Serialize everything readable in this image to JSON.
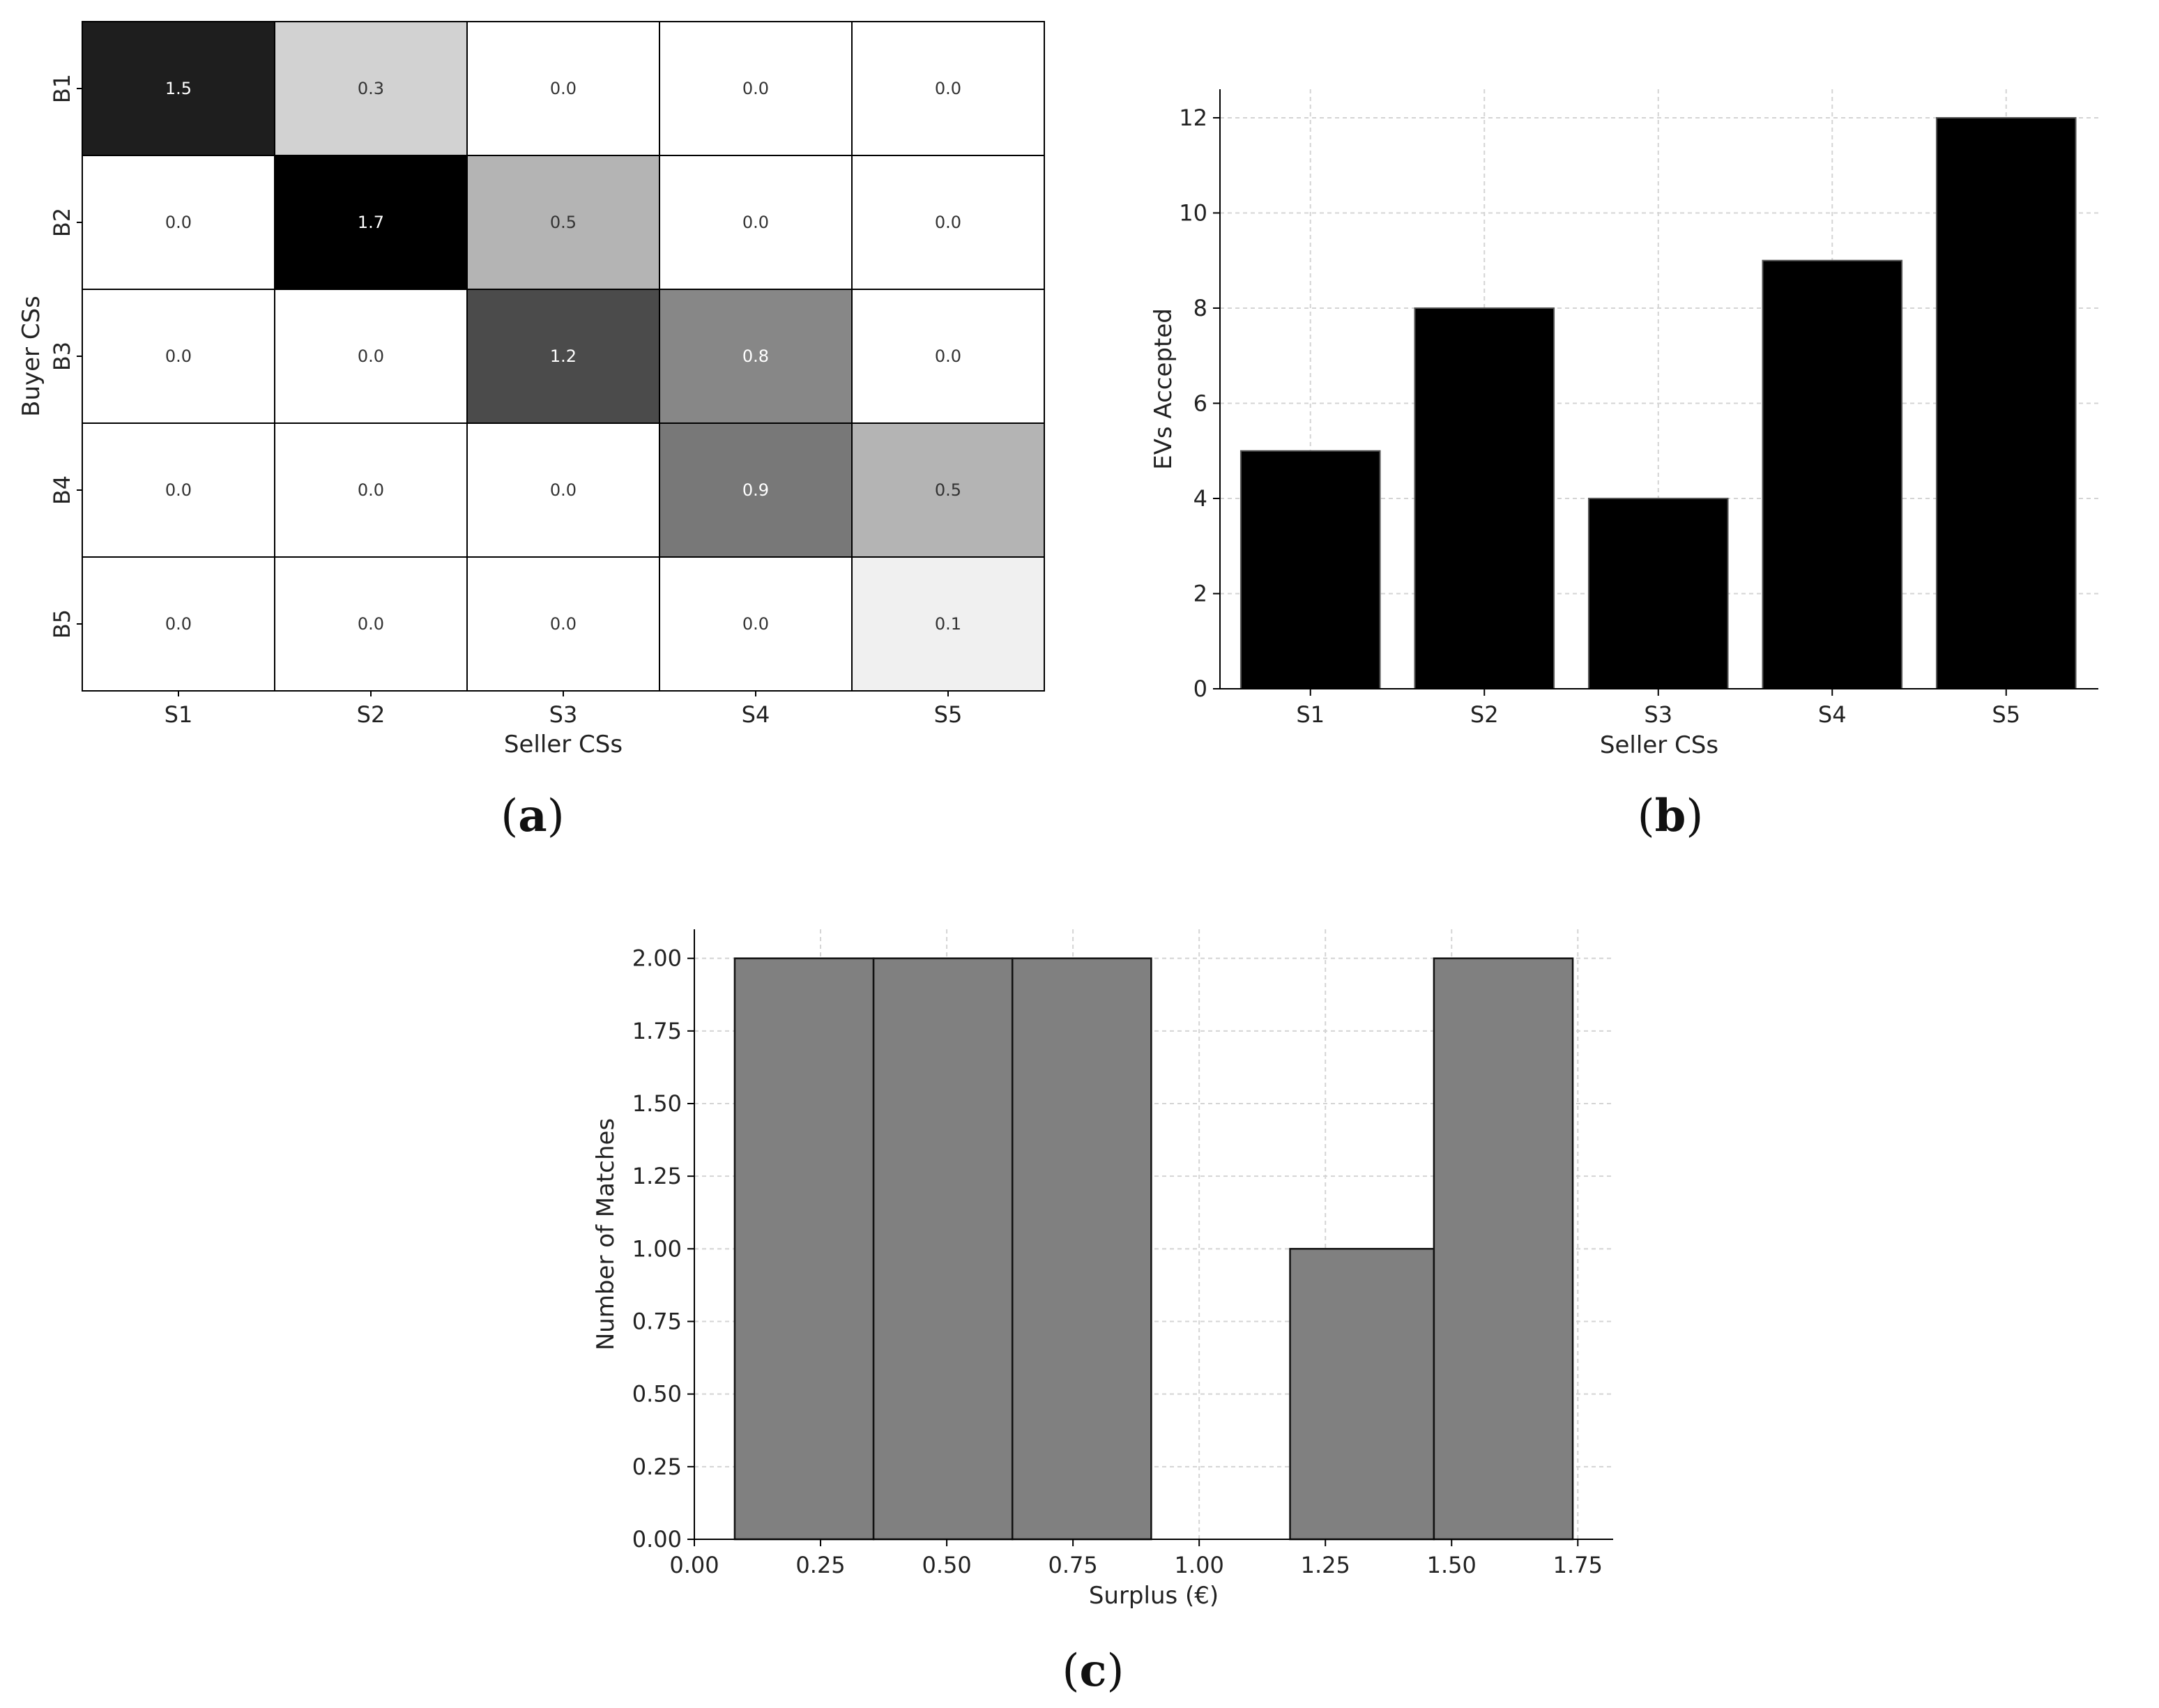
{
  "captions": {
    "a": "a",
    "b": "b",
    "c": "c"
  },
  "chart_data": [
    {
      "panel": "a",
      "type": "heatmap",
      "xlabel": "Seller CSs",
      "ylabel": "Buyer CSs",
      "x_categories": [
        "S1",
        "S2",
        "S3",
        "S4",
        "S5"
      ],
      "y_categories": [
        "B1",
        "B2",
        "B3",
        "B4",
        "B5"
      ],
      "values": [
        [
          1.5,
          0.3,
          0.0,
          0.0,
          0.0
        ],
        [
          0.0,
          1.7,
          0.5,
          0.0,
          0.0
        ],
        [
          0.0,
          0.0,
          1.2,
          0.8,
          0.0
        ],
        [
          0.0,
          0.0,
          0.0,
          0.9,
          0.5
        ],
        [
          0.0,
          0.0,
          0.0,
          0.0,
          0.1
        ]
      ],
      "value_labels": [
        [
          "1.5",
          "0.3",
          "0.0",
          "0.0",
          "0.0"
        ],
        [
          "0.0",
          "1.7",
          "0.5",
          "0.0",
          "0.0"
        ],
        [
          "0.0",
          "0.0",
          "1.2",
          "0.8",
          "0.0"
        ],
        [
          "0.0",
          "0.0",
          "0.0",
          "0.9",
          "0.5"
        ],
        [
          "0.0",
          "0.0",
          "0.0",
          "0.0",
          "0.1"
        ]
      ],
      "colormap": "Greys",
      "vmin": 0.0,
      "vmax": 1.7
    },
    {
      "panel": "b",
      "type": "bar",
      "xlabel": "Seller CSs",
      "ylabel": "EVs Accepted",
      "categories": [
        "S1",
        "S2",
        "S3",
        "S4",
        "S5"
      ],
      "values": [
        5,
        8,
        4,
        9,
        12
      ],
      "ylim": [
        0,
        12.6
      ],
      "yticks": [
        0,
        2,
        4,
        6,
        8,
        10,
        12
      ],
      "ytick_labels": [
        "0",
        "2",
        "4",
        "6",
        "8",
        "10",
        "12"
      ],
      "bar_color": "#000000",
      "grid": true
    },
    {
      "panel": "c",
      "type": "bar",
      "subtype": "histogram",
      "xlabel": "Surplus (€)",
      "ylabel": "Number of Matches",
      "bins": [
        {
          "x0": 0.08,
          "x1": 0.355,
          "count": 2
        },
        {
          "x0": 0.355,
          "x1": 0.63,
          "count": 2
        },
        {
          "x0": 0.63,
          "x1": 0.905,
          "count": 2
        },
        {
          "x0": 0.905,
          "x1": 1.18,
          "count": 0
        },
        {
          "x0": 1.18,
          "x1": 1.465,
          "count": 1
        },
        {
          "x0": 1.465,
          "x1": 1.74,
          "count": 2
        }
      ],
      "xlim": [
        0.0,
        1.82
      ],
      "ylim": [
        0.0,
        2.1
      ],
      "xticks": [
        0.0,
        0.25,
        0.5,
        0.75,
        1.0,
        1.25,
        1.5,
        1.75
      ],
      "xtick_labels": [
        "0.00",
        "0.25",
        "0.50",
        "0.75",
        "1.00",
        "1.25",
        "1.50",
        "1.75"
      ],
      "yticks": [
        0.0,
        0.25,
        0.5,
        0.75,
        1.0,
        1.25,
        1.5,
        1.75,
        2.0
      ],
      "ytick_labels": [
        "0.00",
        "0.25",
        "0.50",
        "0.75",
        "1.00",
        "1.25",
        "1.50",
        "1.75",
        "2.00"
      ],
      "bar_color": "#808080",
      "grid": true
    }
  ]
}
